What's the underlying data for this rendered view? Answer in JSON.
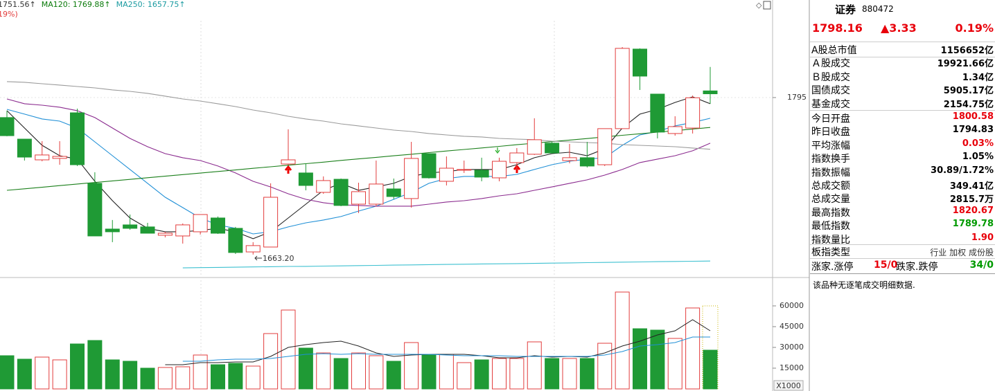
{
  "chart_data": [
    {
      "type": "candlestick",
      "header_labels": [
        {
          "text": "1751.56↑",
          "color": "#333333"
        },
        {
          "text": "MA120: 1769.88↑",
          "color": "#0a7a0a"
        },
        {
          "text": "MA250: 1657.75↑",
          "color": "#1a9aa0"
        }
      ],
      "subheader": "19%)",
      "low_label": "1663.20",
      "ylim": [
        1644.5,
        1876.9
      ],
      "yticks": [
        1795
      ],
      "up_color": "#e23c3c",
      "down_color": "#1f9a35",
      "open": [
        1778.2,
        1760.1,
        1742.7,
        1743.9,
        1782.2,
        1723.0,
        1684.6,
        1688.1,
        1686.4,
        1679.4,
        1678.8,
        1682.3,
        1693.9,
        1685.2,
        1665.4,
        1669.5,
        1739.2,
        1731.7,
        1715.4,
        1726.4,
        1705.5,
        1705.5,
        1718.3,
        1710.2,
        1747.9,
        1724.7,
        1734.0,
        1734.0,
        1727.6,
        1740.4,
        1747.4,
        1756.7,
        1742.1,
        1744.5,
        1738.6,
        1768.9,
        1835.7,
        1797.9,
        1764.8,
        1769.4,
        1800.58
      ],
      "high": [
        1784.0,
        1760.1,
        1758.4,
        1758.4,
        1785.7,
        1732.3,
        1692.2,
        1696.8,
        1689.8,
        1682.3,
        1689.3,
        1696.8,
        1695.1,
        1686.4,
        1673.6,
        1723.0,
        1768.3,
        1739.8,
        1728.8,
        1727.0,
        1723.5,
        1742.1,
        1727.0,
        1757.8,
        1747.9,
        1745.6,
        1742.1,
        1744.5,
        1744.5,
        1752.6,
        1777.6,
        1757.8,
        1756.1,
        1757.8,
        1768.9,
        1837.4,
        1836.3,
        1797.9,
        1779.3,
        1796.7,
        1820.67
      ],
      "low": [
        1762.5,
        1742.1,
        1741.5,
        1738.6,
        1737.5,
        1678.8,
        1673.6,
        1684.0,
        1681.1,
        1677.6,
        1672.4,
        1680.0,
        1680.5,
        1663.7,
        1663.2,
        1669.5,
        1738.6,
        1717.1,
        1714.2,
        1703.8,
        1698.0,
        1703.8,
        1709.6,
        1702.6,
        1727.0,
        1721.2,
        1731.7,
        1724.7,
        1724.7,
        1734.6,
        1746.8,
        1747.9,
        1739.8,
        1736.3,
        1737.5,
        1768.9,
        1801.4,
        1760.7,
        1763.0,
        1764.8,
        1789.78
      ],
      "close": [
        1763.0,
        1745.0,
        1746.8,
        1745.6,
        1738.6,
        1678.8,
        1682.3,
        1685.2,
        1681.1,
        1681.1,
        1688.1,
        1696.8,
        1681.1,
        1664.9,
        1670.7,
        1711.3,
        1742.7,
        1721.2,
        1725.3,
        1704.4,
        1716.0,
        1722.4,
        1711.9,
        1743.9,
        1727.6,
        1735.7,
        1734.6,
        1728.2,
        1741.5,
        1748.5,
        1759.6,
        1748.5,
        1744.5,
        1737.5,
        1768.9,
        1836.3,
        1813.0,
        1766.0,
        1770.6,
        1794.83,
        1798.16
      ],
      "series": [
        {
          "color": "#222222",
          "values": [
            1784.0,
            1769.4,
            1754.9,
            1746.2,
            1743.3,
            1724.7,
            1708.4,
            1693.9,
            1685.2,
            1682.3,
            1682.3,
            1683.4,
            1685.2,
            1682.3,
            1676.5,
            1682.3,
            1693.9,
            1705.5,
            1717.1,
            1723.0,
            1717.1,
            1720.0,
            1723.0,
            1728.8,
            1731.7,
            1732.8,
            1734.6,
            1734.6,
            1734.6,
            1738.6,
            1744.5,
            1747.9,
            1749.1,
            1746.2,
            1752.0,
            1769.4,
            1781.1,
            1785.1,
            1790.9,
            1795.6,
            1789.8
          ]
        },
        {
          "color": "#1f8fd6",
          "values": [
            1785.1,
            1781.1,
            1777.0,
            1775.2,
            1769.4,
            1757.8,
            1746.2,
            1734.6,
            1723.0,
            1711.3,
            1702.6,
            1693.9,
            1688.1,
            1685.2,
            1680.5,
            1682.3,
            1686.4,
            1689.8,
            1692.2,
            1695.1,
            1699.7,
            1703.8,
            1709.6,
            1715.4,
            1723.0,
            1727.0,
            1728.8,
            1728.8,
            1728.8,
            1730.5,
            1734.6,
            1738.6,
            1741.5,
            1743.3,
            1744.5,
            1754.9,
            1763.6,
            1766.5,
            1771.2,
            1774.1,
            1777.6
          ]
        },
        {
          "color": "#8a2a8e",
          "values": [
            1793.8,
            1789.8,
            1788.6,
            1786.9,
            1784.0,
            1778.2,
            1769.4,
            1760.7,
            1753.7,
            1747.9,
            1744.5,
            1742.1,
            1737.5,
            1731.7,
            1724.7,
            1720.0,
            1714.2,
            1709.6,
            1706.7,
            1704.9,
            1704.4,
            1703.8,
            1703.8,
            1703.8,
            1705.5,
            1707.3,
            1708.4,
            1710.2,
            1712.5,
            1714.2,
            1717.1,
            1720.0,
            1723.0,
            1725.9,
            1729.9,
            1734.6,
            1740.4,
            1743.3,
            1746.2,
            1750.3,
            1756.7
          ]
        },
        {
          "color": "#1a7f1a",
          "values": [
            1717.1,
            1718.4,
            1719.7,
            1721.1,
            1722.4,
            1723.7,
            1725.0,
            1726.3,
            1727.7,
            1729.0,
            1730.3,
            1731.6,
            1732.9,
            1734.2,
            1735.6,
            1736.9,
            1738.2,
            1739.5,
            1740.8,
            1742.2,
            1743.5,
            1744.8,
            1746.1,
            1747.4,
            1748.8,
            1750.1,
            1751.4,
            1752.7,
            1754.0,
            1755.4,
            1756.7,
            1758.0,
            1759.3,
            1760.6,
            1762.0,
            1763.3,
            1764.6,
            1765.9,
            1767.2,
            1768.6,
            1769.88
          ]
        },
        {
          "color": "#9a9a9a",
          "values": [
            1808.4,
            1807.8,
            1806.6,
            1805.5,
            1804.3,
            1803.1,
            1801.4,
            1800.2,
            1798.5,
            1796.2,
            1793.8,
            1792.1,
            1789.8,
            1787.4,
            1784.5,
            1782.2,
            1779.3,
            1777.0,
            1775.2,
            1772.9,
            1771.2,
            1769.4,
            1767.7,
            1766.5,
            1764.8,
            1763.6,
            1762.5,
            1761.9,
            1760.7,
            1760.1,
            1759.6,
            1758.4,
            1757.8,
            1757.2,
            1756.7,
            1755.5,
            1754.9,
            1754.3,
            1753.7,
            1752.6,
            1751.56
          ]
        },
        {
          "color": "#3cc0d0",
          "values": [
            null,
            null,
            null,
            null,
            null,
            null,
            null,
            null,
            null,
            null,
            1652.0,
            1652.2,
            1652.4,
            1652.6,
            1652.8,
            1653.0,
            1653.2,
            1653.3,
            1653.5,
            1653.7,
            1653.9,
            1654.1,
            1654.3,
            1654.5,
            1654.7,
            1654.9,
            1655.1,
            1655.3,
            1655.4,
            1655.6,
            1655.8,
            1656.0,
            1656.2,
            1656.4,
            1656.6,
            1656.8,
            1657.0,
            1657.2,
            1657.4,
            1657.6,
            1657.75
          ]
        }
      ]
    },
    {
      "type": "bar",
      "unit_label": "X1000",
      "ylim": [
        0,
        80000
      ],
      "yticks": [
        15000,
        30000,
        45000,
        60000
      ],
      "values": [
        24000,
        21500,
        23000,
        21000,
        32500,
        35000,
        21000,
        20000,
        15000,
        15500,
        16000,
        24500,
        17500,
        18500,
        16500,
        40000,
        57000,
        29500,
        26000,
        22000,
        26000,
        24000,
        20000,
        33500,
        25000,
        25000,
        19000,
        21000,
        22000,
        22000,
        34000,
        22000,
        22000,
        22000,
        33000,
        70000,
        43500,
        42500,
        36500,
        58500,
        28000
      ],
      "series": [
        {
          "color": "#222222",
          "values": [
            null,
            null,
            null,
            null,
            null,
            null,
            null,
            null,
            null,
            17500,
            17500,
            19000,
            19000,
            19500,
            19500,
            23500,
            30000,
            32000,
            33500,
            34500,
            31000,
            26000,
            23500,
            24500,
            25000,
            25000,
            25000,
            24000,
            22500,
            22500,
            24000,
            23000,
            23500,
            23000,
            26000,
            31000,
            34500,
            39000,
            42000,
            50000,
            42000
          ]
        },
        {
          "color": "#1f8fd6",
          "values": [
            null,
            null,
            null,
            null,
            null,
            null,
            null,
            null,
            null,
            null,
            20000,
            20000,
            21000,
            21500,
            21500,
            22000,
            23500,
            25000,
            25500,
            25000,
            25500,
            25000,
            25000,
            25000,
            25000,
            24500,
            24000,
            24000,
            24000,
            23500,
            23500,
            23500,
            23500,
            23500,
            24500,
            27000,
            31000,
            32000,
            33500,
            37500,
            37500
          ]
        }
      ]
    }
  ],
  "quote": {
    "name": "证券",
    "code": "880472",
    "price": "1798.16",
    "change": "▲3.33",
    "pct": "0.19%",
    "rows": [
      [
        "A股总市值",
        "1156652亿"
      ],
      [
        "Ａ股成交",
        "19921.66亿"
      ],
      [
        "Ｂ股成交",
        "1.34亿"
      ],
      [
        "国债成交",
        "5905.17亿"
      ],
      [
        "基金成交",
        "2154.75亿"
      ],
      [
        "今日开盘",
        "1800.58"
      ],
      [
        "昨日收盘",
        "1794.83"
      ],
      [
        "平均涨幅",
        "0.03%"
      ],
      [
        "指数换手",
        "1.05%"
      ],
      [
        "指数振幅",
        "30.89/1.72%"
      ],
      [
        "总成交额",
        "349.41亿"
      ],
      [
        "总成交量",
        "2815.7万"
      ],
      [
        "最高指数",
        "1820.67"
      ],
      [
        "最低指数",
        "1789.78"
      ],
      [
        "指数量比",
        "1.90"
      ]
    ],
    "row_colors": [
      "#000000",
      "#000000",
      "#000000",
      "#000000",
      "#000000",
      "#e8000b",
      "#000000",
      "#e8000b",
      "#000000",
      "#000000",
      "#000000",
      "#000000",
      "#e8000b",
      "#009a00",
      "#e8000b"
    ],
    "board_type": {
      "label": "板指类型",
      "options": [
        "行业",
        "加权",
        "成份股"
      ]
    },
    "breadth": [
      "涨家.涨停",
      "15/0",
      "跌家.跌停",
      "34/0"
    ],
    "note": "该品种无逐笔成交明细数据."
  }
}
